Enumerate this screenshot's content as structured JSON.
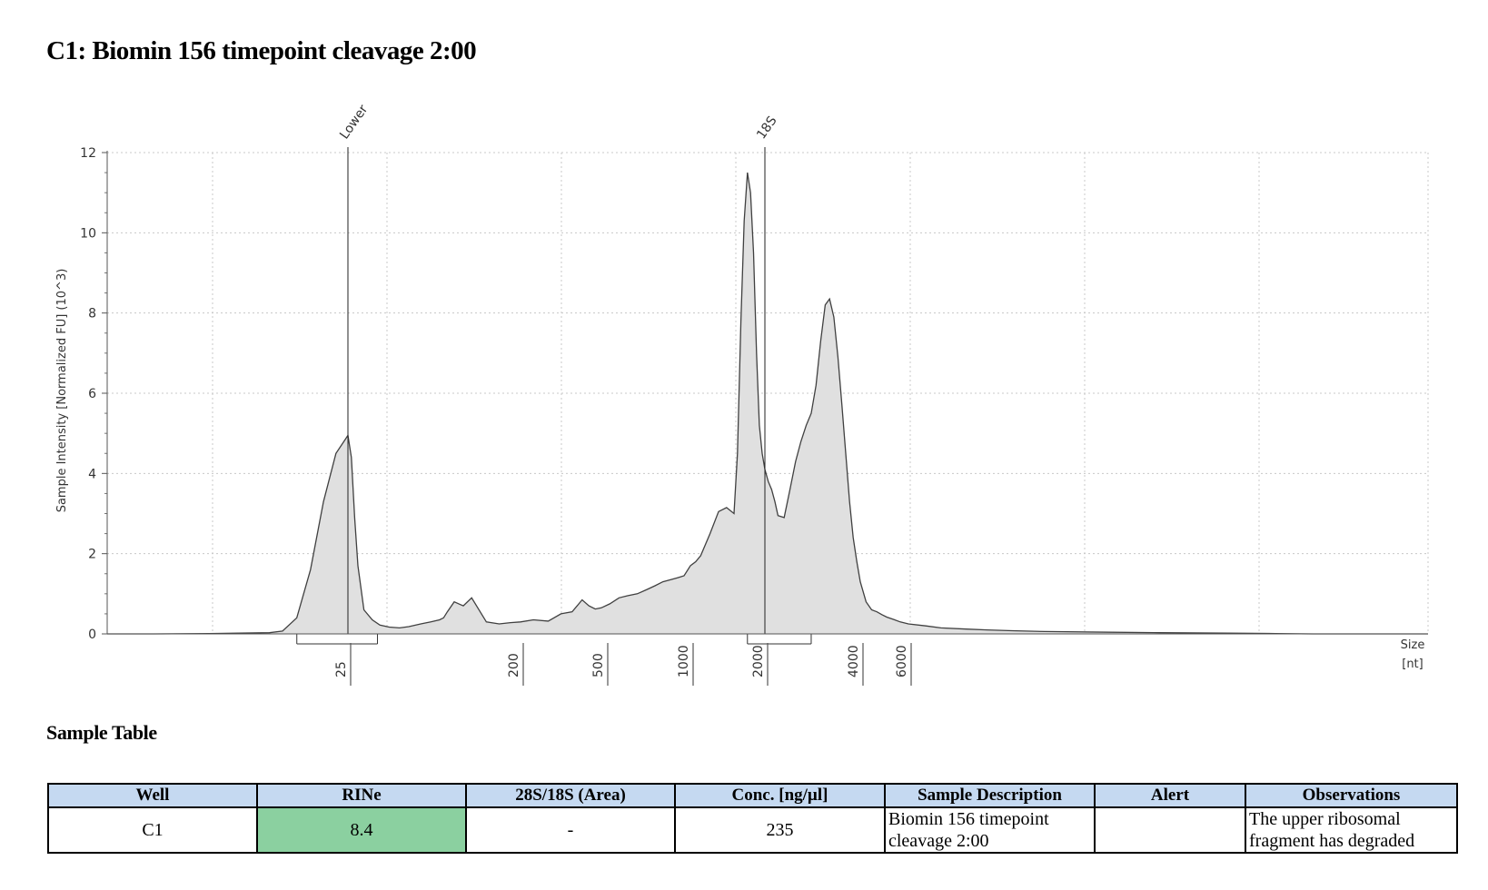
{
  "page": {
    "title": "C1: Biomin 156 timepoint cleavage 2:00"
  },
  "chart_data": {
    "type": "area",
    "title": "",
    "xlabel": "Size\n[nt]",
    "xlabel_lines": [
      "Size",
      "[nt]"
    ],
    "ylabel": "Sample Intensity [Normalized FU] (10^3)",
    "ylim": [
      0,
      12
    ],
    "y_ticks": [
      0,
      2,
      4,
      6,
      8,
      10,
      12
    ],
    "x_scale": "log",
    "x_ticks": [
      25,
      200,
      500,
      1000,
      2000,
      4000,
      6000
    ],
    "grid": true,
    "peak_labels": [
      {
        "label": "Lower",
        "size_nt": 25
      },
      {
        "label": "18S",
        "size_nt": 2000
      }
    ],
    "regions": [
      {
        "name": "lower-marker-region",
        "from_nt": 21,
        "to_nt": 35
      },
      {
        "name": "18S-region",
        "from_nt": 1700,
        "to_nt": 2800
      }
    ],
    "colors": {
      "fill": "#e0e0e0",
      "line": "#404040",
      "grid": "#c8c8c8"
    },
    "series": [
      {
        "x": [
          5,
          10,
          15,
          19,
          20,
          21,
          22,
          23,
          24,
          25,
          26,
          27,
          28,
          30,
          33,
          36,
          40,
          45,
          50,
          60,
          70,
          80,
          85,
          90,
          100,
          110,
          120,
          140,
          160,
          180,
          200,
          230,
          270,
          310,
          350,
          390,
          420,
          450,
          480,
          520,
          560,
          600,
          650,
          700,
          750,
          800,
          850,
          900,
          950,
          1000,
          1050,
          1100,
          1200,
          1300,
          1400,
          1500,
          1550,
          1600,
          1650,
          1700,
          1750,
          1800,
          1850,
          1900,
          1950,
          2000,
          2050,
          2100,
          2150,
          2200,
          2300,
          2400,
          2500,
          2600,
          2700,
          2800,
          2900,
          3000,
          3100,
          3200,
          3300,
          3400,
          3500,
          3600,
          3700,
          3800,
          3900,
          4000,
          4200,
          4400,
          4600,
          4800,
          5000,
          5300,
          5600,
          6000,
          7000,
          8000,
          10000,
          12000,
          15000,
          20000,
          30000,
          40000,
          60000,
          80000,
          100000,
          150000,
          200000
        ],
        "y": [
          0,
          0,
          0.01,
          0.03,
          0.07,
          0.4,
          1.6,
          3.3,
          4.5,
          4.95,
          4.4,
          2.9,
          1.7,
          0.6,
          0.35,
          0.22,
          0.17,
          0.15,
          0.18,
          0.25,
          0.3,
          0.35,
          0.4,
          0.55,
          0.8,
          0.7,
          0.9,
          0.3,
          0.25,
          0.28,
          0.3,
          0.35,
          0.32,
          0.5,
          0.55,
          0.85,
          0.7,
          0.62,
          0.65,
          0.75,
          0.9,
          0.95,
          1.0,
          1.1,
          1.2,
          1.3,
          1.35,
          1.4,
          1.45,
          1.7,
          1.8,
          1.95,
          2.5,
          3.05,
          3.15,
          3.0,
          4.5,
          7.8,
          10.3,
          11.5,
          11.0,
          9.5,
          7.0,
          5.2,
          4.5,
          4.1,
          3.8,
          3.6,
          3.3,
          2.95,
          2.9,
          3.6,
          4.3,
          4.8,
          5.2,
          5.5,
          6.2,
          7.3,
          8.2,
          8.35,
          7.9,
          6.9,
          5.7,
          4.5,
          3.3,
          2.4,
          1.8,
          1.3,
          0.8,
          0.6,
          0.55,
          0.48,
          0.42,
          0.36,
          0.3,
          0.25,
          0.2,
          0.15,
          0.12,
          0.1,
          0.08,
          0.06,
          0.04,
          0.03,
          0.02,
          0.01,
          0,
          0,
          0
        ]
      }
    ]
  },
  "table": {
    "title": "Sample Table",
    "headers": [
      "Well",
      "RINe",
      "28S/18S (Area)",
      "Conc. [ng/µl]",
      "Sample Description",
      "Alert",
      "Observations"
    ],
    "row": {
      "well": "C1",
      "rine": "8.4",
      "ratio": "-",
      "conc": "235",
      "description_lines": [
        "Biomin 156 timepoint",
        "cleavage 2:00"
      ],
      "alert": "",
      "observations_lines": [
        "The upper ribosomal",
        "fragment has degraded"
      ]
    },
    "rine_color": "#8bd0a0",
    "header_color": "#c5d9f1"
  }
}
